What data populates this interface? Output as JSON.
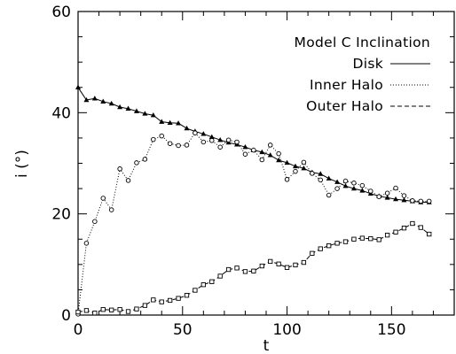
{
  "chart_data": {
    "type": "line",
    "title": "Model C Inclination",
    "xlabel": "t",
    "ylabel": "i (°)",
    "xlim": [
      0,
      180
    ],
    "ylim": [
      0,
      60
    ],
    "xticks": [
      0,
      50,
      100,
      150
    ],
    "yticks": [
      0,
      20,
      40,
      60
    ],
    "grid": false,
    "legend_position": "top-right",
    "series": [
      {
        "name": "Disk",
        "line_style": "solid",
        "marker": "triangle",
        "x": [
          0,
          4,
          8,
          12,
          16,
          20,
          24,
          28,
          32,
          36,
          40,
          44,
          48,
          52,
          56,
          60,
          64,
          68,
          72,
          76,
          80,
          84,
          88,
          92,
          96,
          100,
          104,
          108,
          112,
          116,
          120,
          124,
          128,
          132,
          136,
          140,
          144,
          148,
          152,
          156,
          160,
          164,
          168
        ],
        "y": [
          45,
          42.5,
          42.8,
          42.2,
          41.8,
          41.1,
          40.8,
          40.3,
          39.8,
          39.5,
          38.2,
          38.0,
          37.9,
          36.9,
          36.3,
          35.8,
          35.2,
          34.6,
          34.1,
          33.7,
          33.2,
          32.6,
          32.2,
          31.6,
          30.6,
          30.1,
          29.4,
          29.0,
          28.2,
          27.9,
          27.0,
          26.3,
          25.5,
          25.0,
          24.6,
          24.0,
          23.5,
          23.2,
          22.9,
          22.7,
          22.5,
          22.3,
          22.3
        ]
      },
      {
        "name": "Inner Halo",
        "line_style": "dotted",
        "marker": "circle",
        "x": [
          0,
          4,
          8,
          12,
          16,
          20,
          24,
          28,
          32,
          36,
          40,
          44,
          48,
          52,
          56,
          60,
          64,
          68,
          72,
          76,
          80,
          84,
          88,
          92,
          96,
          100,
          104,
          108,
          112,
          116,
          120,
          124,
          128,
          132,
          136,
          140,
          144,
          148,
          152,
          156,
          160,
          164,
          168
        ],
        "y": [
          0.2,
          14.2,
          18.5,
          23.1,
          20.8,
          28.9,
          26.6,
          30.1,
          30.8,
          34.7,
          35.4,
          33.9,
          33.5,
          33.6,
          36.0,
          34.2,
          34.5,
          33.2,
          34.6,
          34.2,
          31.8,
          32.6,
          30.7,
          33.6,
          31.9,
          26.8,
          28.4,
          30.2,
          28.0,
          26.7,
          23.7,
          25.0,
          26.5,
          26.1,
          25.6,
          24.5,
          23.4,
          24.1,
          25.1,
          23.6,
          22.6,
          22.5,
          22.5
        ]
      },
      {
        "name": "Outer Halo",
        "line_style": "dashed",
        "marker": "square",
        "x": [
          0,
          4,
          8,
          12,
          16,
          20,
          24,
          28,
          32,
          36,
          40,
          44,
          48,
          52,
          56,
          60,
          64,
          68,
          72,
          76,
          80,
          84,
          88,
          92,
          96,
          100,
          104,
          108,
          112,
          116,
          120,
          124,
          128,
          132,
          136,
          140,
          144,
          148,
          152,
          156,
          160,
          164,
          168
        ],
        "y": [
          0.6,
          0.9,
          0.4,
          1.1,
          1.0,
          1.1,
          0.7,
          1.2,
          1.9,
          3.0,
          2.6,
          2.9,
          3.3,
          3.9,
          4.9,
          6.0,
          6.6,
          7.7,
          9.0,
          9.3,
          8.6,
          8.7,
          9.7,
          10.6,
          10.1,
          9.4,
          9.9,
          10.4,
          12.2,
          13.1,
          13.7,
          14.2,
          14.5,
          15.0,
          15.2,
          15.1,
          14.9,
          15.8,
          16.4,
          17.2,
          18.1,
          17.3,
          16.0
        ]
      }
    ]
  }
}
